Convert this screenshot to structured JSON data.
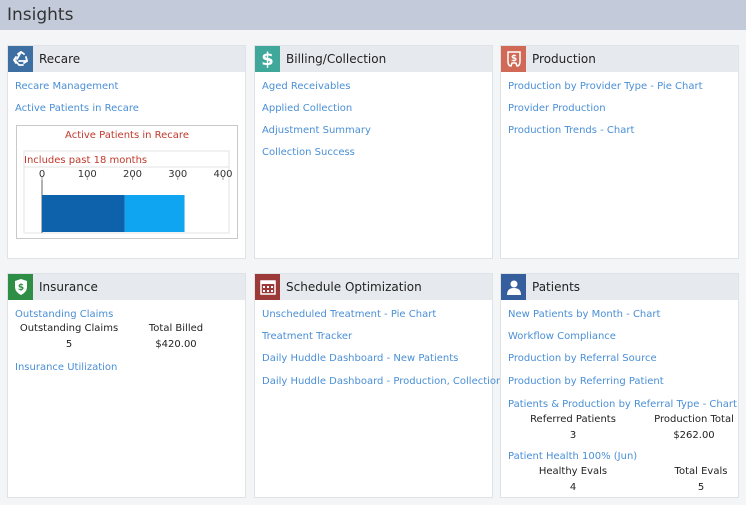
{
  "page": {
    "title": "Insights"
  },
  "recare": {
    "title": "Recare",
    "links": [
      "Recare Management",
      "Active Patients in Recare"
    ]
  },
  "billing": {
    "title": "Billing/Collection",
    "links": [
      "Aged Receivables",
      "Applied Collection",
      "Adjustment Summary",
      "Collection Success"
    ]
  },
  "production": {
    "title": "Production",
    "links": [
      "Production by Provider Type - Pie Chart",
      "Provider Production",
      "Production Trends - Chart"
    ]
  },
  "insurance": {
    "title": "Insurance",
    "links": [
      "Outstanding Claims",
      "Insurance Utilization"
    ],
    "stats": [
      {
        "label": "Outstanding Claims",
        "value": "5"
      },
      {
        "label": "Total Billed",
        "value": "$420.00"
      }
    ]
  },
  "schedule": {
    "title": "Schedule Optimization",
    "links": [
      "Unscheduled Treatment - Pie Chart",
      "Treatment Tracker",
      "Daily Huddle Dashboard - New Patients",
      "Daily Huddle Dashboard - Production, Collections"
    ]
  },
  "patients": {
    "title": "Patients",
    "links": [
      "New Patients by Month - Chart",
      "Workflow Compliance",
      "Production by Referral Source",
      "Production by Referring Patient",
      "Patients & Production by Referral Type - Chart",
      "Patient Health 100% (Jun)"
    ],
    "referral_stats": [
      {
        "label": "Referred Patients",
        "value": "3"
      },
      {
        "label": "Production Total",
        "value": "$262.00"
      }
    ],
    "health_stats": [
      {
        "label": "Healthy Evals",
        "value": "4"
      },
      {
        "label": "Total Evals",
        "value": "5"
      }
    ]
  },
  "chart_data": {
    "type": "bar",
    "title": "Active Patients in Recare",
    "subtitle": "Includes past 18 months",
    "orientation": "horizontal",
    "stacked": true,
    "xlim": [
      0,
      400
    ],
    "ticks": [
      "0",
      "100",
      "200",
      "300",
      "400"
    ],
    "categories": [
      ""
    ],
    "series": [
      {
        "values": [
          183
        ],
        "color": "#0d62ab"
      },
      {
        "values": [
          132
        ],
        "color": "#10a5f0"
      }
    ]
  },
  "colors": {
    "recare_icon_bg": "#3d6fa3",
    "billing_icon_bg": "#3fa89a",
    "production_icon_bg": "#d06a56",
    "insurance_icon_bg": "#2f8e45",
    "schedule_icon_bg": "#9c3a3a",
    "patients_icon_bg": "#355f9c",
    "link": "#4a8fd6"
  }
}
